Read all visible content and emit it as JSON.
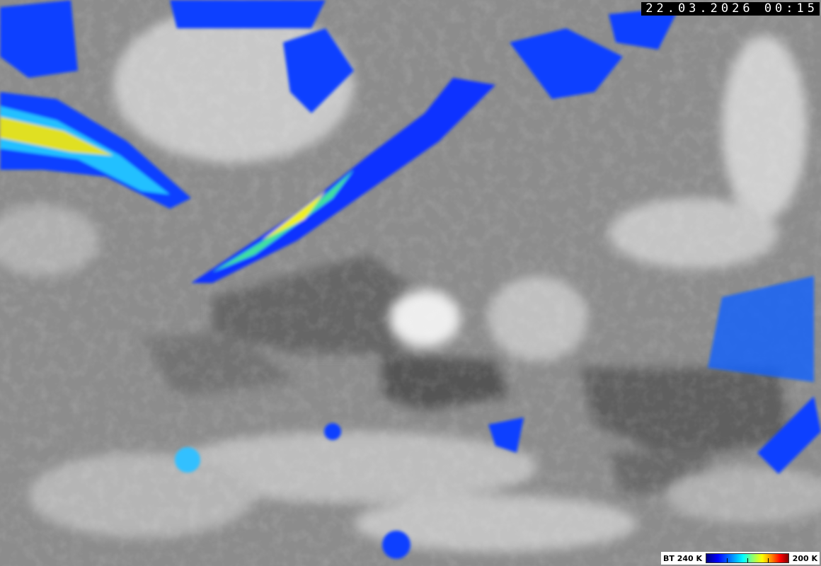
{
  "image": {
    "type": "infrared satellite image",
    "timestamp": "22.03.2026 00:15",
    "colors": {
      "background_gray": "#8c8c8c",
      "cold_cloud_low": "#0000ff",
      "cold_cloud_high": "#ff0000"
    }
  },
  "legend": {
    "min_label": "BT 240 K",
    "max_label": "200 K",
    "colormap": [
      "#00007f",
      "#0000ff",
      "#0080ff",
      "#00ffff",
      "#7fff7f",
      "#ffff00",
      "#ff8000",
      "#ff0000",
      "#7f0000"
    ],
    "ticks": 3
  }
}
